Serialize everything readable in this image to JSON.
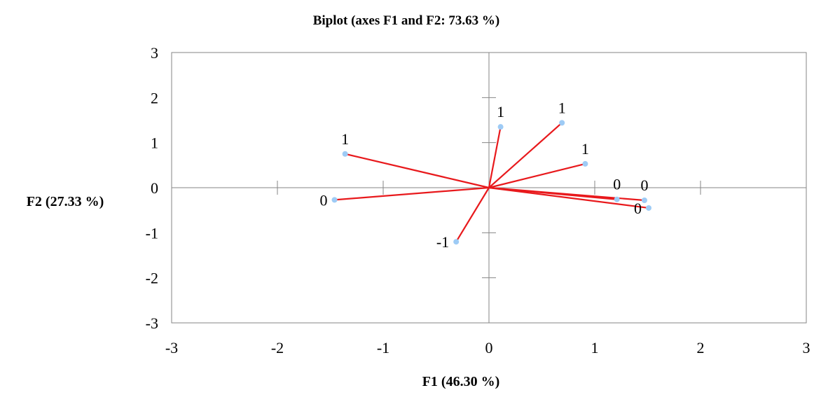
{
  "chart_data": {
    "type": "scatter",
    "title": "Biplot (axes F1 and F2: 73.63 %)",
    "xlabel": "F1 (46.30 %)",
    "ylabel": "F2 (27.33 %)",
    "xlim": [
      -3,
      3
    ],
    "ylim": [
      -3,
      3
    ],
    "xticks": [
      "-3",
      "-2",
      "-1",
      "0",
      "1",
      "2",
      "3"
    ],
    "yticks": [
      "3",
      "2",
      "1",
      "0",
      "-1",
      "-2",
      "-3"
    ],
    "grid": false,
    "colors": {
      "vector": "#e8191c",
      "point": "#9ecbf5",
      "axis": "#868686",
      "text": "#000000"
    },
    "points": [
      {
        "x": -1.36,
        "y": 0.75,
        "label": "1",
        "label_pos": "above"
      },
      {
        "x": 0.11,
        "y": 1.35,
        "label": "1",
        "label_pos": "above"
      },
      {
        "x": 0.69,
        "y": 1.44,
        "label": "1",
        "label_pos": "above"
      },
      {
        "x": 0.91,
        "y": 0.53,
        "label": "1",
        "label_pos": "above"
      },
      {
        "x": -1.46,
        "y": -0.27,
        "label": "0",
        "label_pos": "left"
      },
      {
        "x": 1.21,
        "y": -0.26,
        "label": "0",
        "label_pos": "above"
      },
      {
        "x": 1.47,
        "y": -0.28,
        "label": "0",
        "label_pos": "above"
      },
      {
        "x": 1.51,
        "y": -0.45,
        "label": "0",
        "label_pos": "left"
      },
      {
        "x": -0.31,
        "y": -1.2,
        "label": "-1",
        "label_pos": "left"
      }
    ]
  }
}
